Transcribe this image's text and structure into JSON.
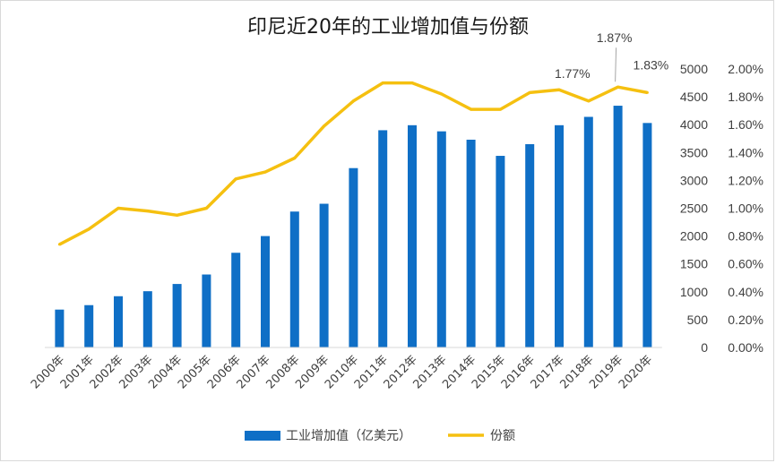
{
  "chart_data": {
    "type": "bar+line",
    "title": "印尼近20年的工业增加值与份额",
    "categories": [
      "2000年",
      "2001年",
      "2002年",
      "2003年",
      "2004年",
      "2005年",
      "2006年",
      "2007年",
      "2008年",
      "2009年",
      "2010年",
      "2011年",
      "2012年",
      "2013年",
      "2014年",
      "2015年",
      "2016年",
      "2017年",
      "2018年",
      "2019年",
      "2020年"
    ],
    "series": [
      {
        "name": "工业增加值（亿美元）",
        "type": "bar",
        "axis": "left",
        "color": "#0f6fc6",
        "values": [
          680,
          760,
          920,
          1010,
          1140,
          1310,
          1700,
          2000,
          2440,
          2580,
          3220,
          3900,
          3990,
          3880,
          3730,
          3440,
          3650,
          3990,
          4140,
          4340,
          4030
        ]
      },
      {
        "name": "份额",
        "type": "line",
        "axis": "right",
        "color": "#f5c010",
        "values": [
          0.74,
          0.85,
          1.0,
          0.98,
          0.95,
          1.0,
          1.21,
          1.26,
          1.36,
          1.59,
          1.77,
          1.9,
          1.9,
          1.82,
          1.71,
          1.71,
          1.83,
          1.85,
          1.77,
          1.87,
          1.83
        ]
      }
    ],
    "y_left": {
      "min": 0,
      "max": 5000,
      "ticks": [
        "0",
        "500",
        "1000",
        "1500",
        "2000",
        "2500",
        "3000",
        "3500",
        "4000",
        "4500",
        "5000"
      ]
    },
    "y_right": {
      "min": 0,
      "max": 2.0,
      "ticks": [
        "0.00%",
        "0.20%",
        "0.40%",
        "0.60%",
        "0.80%",
        "1.00%",
        "1.20%",
        "1.40%",
        "1.60%",
        "1.80%",
        "2.00%"
      ]
    },
    "annotations": [
      {
        "category": "2018年",
        "label": "1.77%"
      },
      {
        "category": "2019年",
        "label": "1.87%"
      },
      {
        "category": "2020年",
        "label": "1.83%"
      }
    ],
    "legend_position": "bottom",
    "grid": false
  }
}
